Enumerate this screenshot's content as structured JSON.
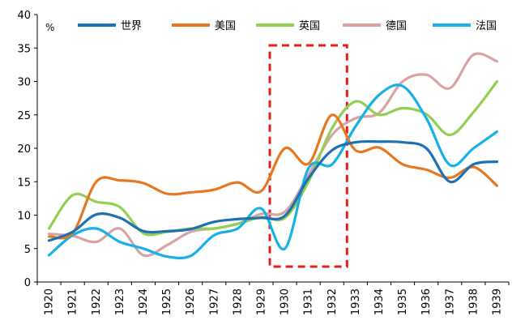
{
  "chart_data": {
    "type": "line",
    "title": "",
    "ylabel": "%",
    "xlabel": "",
    "ylim": [
      0,
      40
    ],
    "yticks": [
      "0",
      "5",
      "10",
      "15",
      "20",
      "25",
      "30",
      "35",
      "40"
    ],
    "x": [
      "1920",
      "1921",
      "1922",
      "1923",
      "1924",
      "1925",
      "1926",
      "1927",
      "1928",
      "1929",
      "1930",
      "1931",
      "1932",
      "1933",
      "1934",
      "1935",
      "1936",
      "1937",
      "1938",
      "1939"
    ],
    "series": [
      {
        "name": "世界",
        "color": "#1f6fb4",
        "values": [
          6.2,
          7.5,
          10.1,
          9.6,
          7.6,
          7.6,
          7.9,
          9.0,
          9.4,
          9.6,
          9.9,
          15.5,
          19.7,
          20.9,
          21.0,
          20.9,
          20.0,
          15.0,
          17.6,
          18.0
        ]
      },
      {
        "name": "美国",
        "color": "#e87722",
        "values": [
          6.8,
          7.3,
          15.0,
          15.2,
          14.8,
          13.2,
          13.4,
          13.8,
          14.9,
          13.6,
          20.0,
          17.7,
          25.0,
          19.7,
          20.1,
          17.6,
          16.8,
          15.6,
          17.2,
          14.4
        ]
      },
      {
        "name": "英国",
        "color": "#92d050",
        "values": [
          8.0,
          13.0,
          12.0,
          11.2,
          7.3,
          7.5,
          8.0,
          8.0,
          8.7,
          9.7,
          9.6,
          15.0,
          23.0,
          27.0,
          25.0,
          26.0,
          25.1,
          22.0,
          25.4,
          30.0
        ]
      },
      {
        "name": "德国",
        "color": "#d9a3a4",
        "values": [
          7.2,
          6.9,
          6.0,
          8.0,
          4.0,
          5.5,
          7.5,
          8.0,
          8.7,
          10.2,
          10.5,
          16.0,
          22.0,
          24.5,
          25.3,
          30.0,
          31.0,
          29.0,
          34.0,
          33.0
        ]
      },
      {
        "name": "法国",
        "color": "#17b0e8",
        "values": [
          4.0,
          7.0,
          8.0,
          6.0,
          5.0,
          3.8,
          3.9,
          7.0,
          8.0,
          11.0,
          5.0,
          17.0,
          17.6,
          23.3,
          28.0,
          29.3,
          24.5,
          17.5,
          20.0,
          22.5
        ]
      }
    ],
    "annotations": [
      {
        "type": "dashed-box",
        "x_range": [
          "1930",
          "1932"
        ],
        "color": "#e0201d"
      }
    ]
  }
}
